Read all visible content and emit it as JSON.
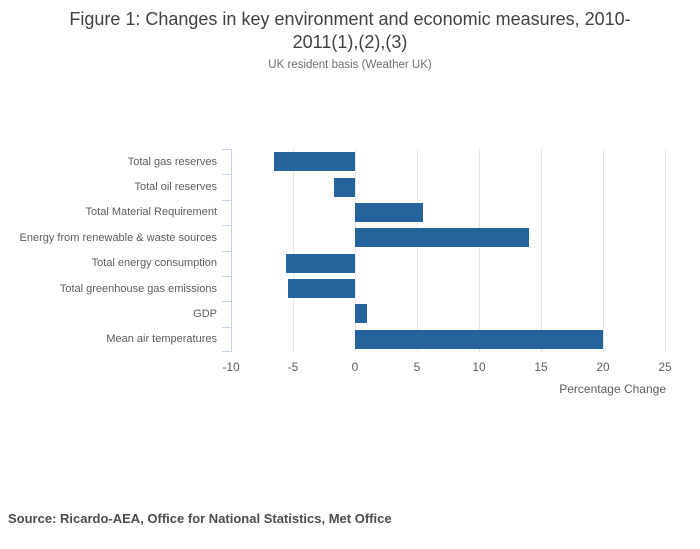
{
  "title": "Figure 1: Changes in key environment and economic measures, 2010-2011(1),(2),(3)",
  "subtitle": "UK resident basis (Weather UK)",
  "source": "Source: Ricardo-AEA, Office for National Statistics, Met Office",
  "chart_data": {
    "type": "bar",
    "orientation": "horizontal",
    "title": "Figure 1: Changes in key environment and economic measures, 2010-2011(1),(2),(3)",
    "subtitle": "UK resident basis (Weather UK)",
    "categories": [
      "Total gas reserves",
      "Total oil reserves",
      "Total Material Requirement",
      "Energy from renewable & waste sources",
      "Total energy consumption",
      "Total greenhouse gas emissions",
      "GDP",
      "Mean air temperatures"
    ],
    "values": [
      -6.5,
      -1.7,
      5.5,
      14.0,
      -5.6,
      -5.4,
      1.0,
      20.0
    ],
    "xlabel": "Percentage Change",
    "xlim": [
      -10,
      25
    ],
    "xticks": [
      -10,
      -5,
      0,
      5,
      10,
      15,
      20,
      25
    ],
    "grid": true,
    "legend": "none",
    "bar_color": "#25639C",
    "gridline_color": "#e5e5e5",
    "axis_color": "#c7d1e3",
    "label_color": "#5d5d5d"
  }
}
